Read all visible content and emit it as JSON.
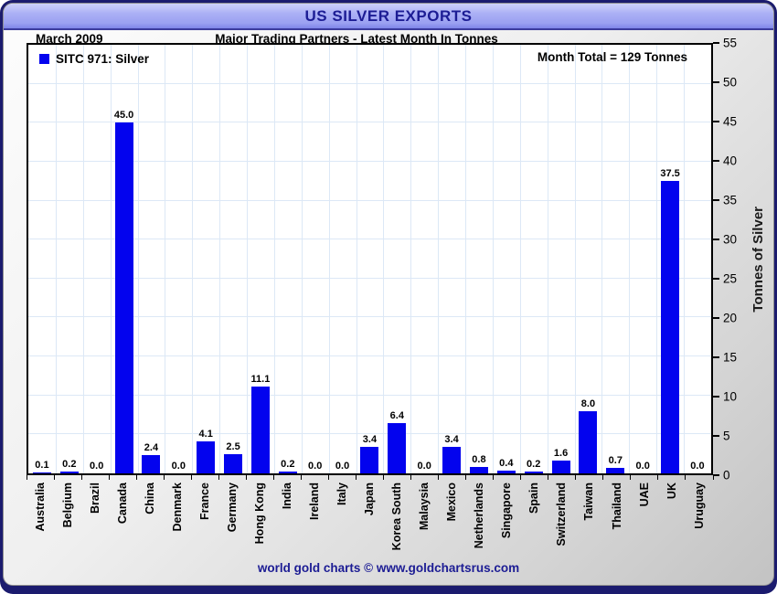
{
  "header": {
    "title": "US SILVER EXPORTS",
    "date": "March 2009",
    "subtitle": "Major Trading Partners - Latest Month In Tonnes",
    "month_total": "Month Total = 129 Tonnes"
  },
  "legend": {
    "label": "SITC 971: Silver",
    "swatch_color": "#0303ee"
  },
  "chart_data": {
    "type": "bar",
    "title": "US SILVER EXPORTS",
    "subtitle": "Major Trading Partners - Latest Month In Tonnes",
    "categories": [
      "Australia",
      "Belgium",
      "Brazil",
      "Canada",
      "China",
      "Denmark",
      "France",
      "Germany",
      "Hong Kong",
      "India",
      "Ireland",
      "Italy",
      "Japan",
      "Korea South",
      "Malaysia",
      "Mexico",
      "Netherlands",
      "Singapore",
      "Spain",
      "Switzerland",
      "Taiwan",
      "Thailand",
      "UAE",
      "UK",
      "Uruguay"
    ],
    "values": [
      0.1,
      0.2,
      0.0,
      45.0,
      2.4,
      0.0,
      4.1,
      2.5,
      11.1,
      0.2,
      0.0,
      0.0,
      3.4,
      6.4,
      0.0,
      3.4,
      0.8,
      0.4,
      0.2,
      1.6,
      8.0,
      0.7,
      0.0,
      37.5,
      0.0
    ],
    "xlabel": "",
    "ylabel": "Tonnes of Silver",
    "ylim": [
      0,
      55
    ],
    "ytick_step": 5,
    "grid": true,
    "legend_position": "top-left",
    "bar_color": "#0303ee",
    "grid_color": "#dce8f6"
  },
  "footer": {
    "text": "world gold charts © www.goldchartsrus.com"
  },
  "colors": {
    "frame_navy": "#1b1b6e",
    "titlebar_top": "#cdd0fa",
    "titlebar_bottom": "#7e85e9",
    "title_text": "#1c1c94",
    "bar_blue": "#0303ee",
    "gridline": "#dce8f6"
  }
}
